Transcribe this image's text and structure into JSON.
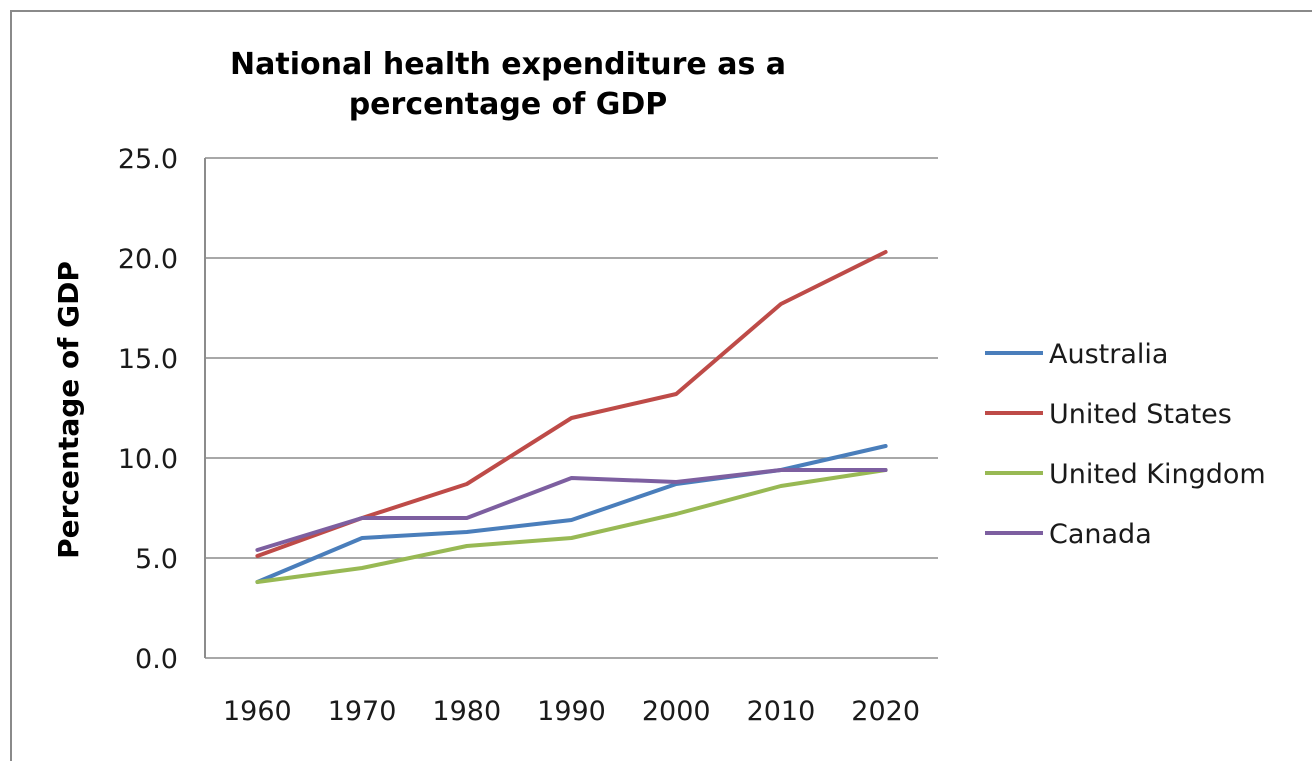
{
  "chart_data": {
    "type": "line",
    "title": "National health expenditure as a percentage of GDP",
    "title_lines": [
      "National health expenditure as a",
      "percentage of GDP"
    ],
    "xlabel": "",
    "ylabel": "Percentage of  GDP",
    "x": [
      "1960",
      "1970",
      "1980",
      "1990",
      "2000",
      "2010",
      "2020"
    ],
    "ylim": [
      0,
      25
    ],
    "yticks": [
      "0.0",
      "5.0",
      "10.0",
      "15.0",
      "20.0",
      "25.0"
    ],
    "grid": "horizontal",
    "legend_position": "right",
    "series": [
      {
        "name": "Australia",
        "color": "#4a7ebb",
        "values": [
          3.8,
          6.0,
          6.3,
          6.9,
          8.7,
          9.4,
          10.6
        ]
      },
      {
        "name": "United States",
        "color": "#be4b48",
        "values": [
          5.1,
          7.0,
          8.7,
          12.0,
          13.2,
          17.7,
          20.3
        ]
      },
      {
        "name": "United Kingdom",
        "color": "#98b954",
        "values": [
          3.8,
          4.5,
          5.6,
          6.0,
          7.2,
          8.6,
          9.4
        ]
      },
      {
        "name": "Canada",
        "color": "#7d5fa0",
        "values": [
          5.4,
          7.0,
          7.0,
          9.0,
          8.8,
          9.4,
          9.4
        ]
      }
    ]
  }
}
